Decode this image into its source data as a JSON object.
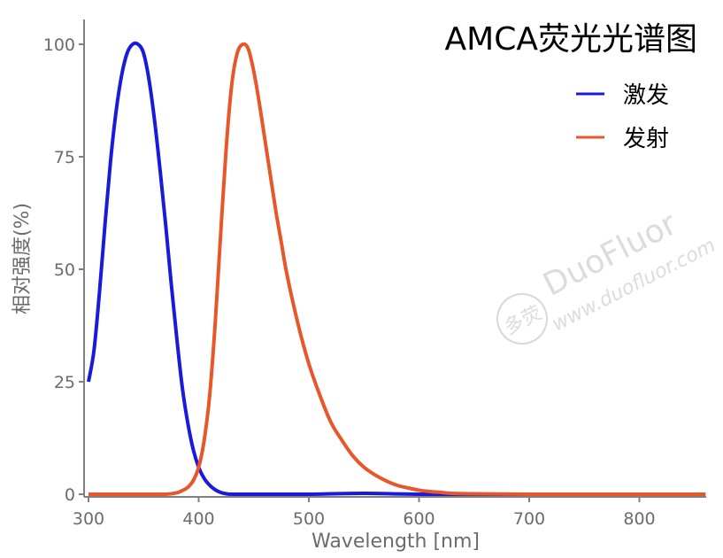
{
  "chart_data": {
    "type": "line",
    "title": "AMCA荧光光谱图",
    "xlabel": "Wavelength [nm]",
    "ylabel": "相对强度(%)",
    "xlim": [
      300,
      860
    ],
    "ylim": [
      0,
      100
    ],
    "xticks": [
      300,
      400,
      500,
      600,
      700,
      800
    ],
    "yticks": [
      0,
      25,
      50,
      75,
      100
    ],
    "grid": false,
    "legend_position": "top-right",
    "series": [
      {
        "name": "激发",
        "color": "#1a1adb",
        "x": [
          300,
          305,
          310,
          315,
          320,
          325,
          330,
          335,
          340,
          345,
          350,
          355,
          360,
          365,
          370,
          375,
          380,
          385,
          390,
          395,
          400,
          405,
          410,
          415,
          420,
          425,
          430,
          440,
          450,
          460,
          470,
          480,
          500,
          550,
          600,
          700,
          800,
          860
        ],
        "y": [
          25,
          32,
          45,
          60,
          74,
          85,
          93,
          98,
          100,
          100,
          98,
          92,
          83,
          72,
          60,
          47,
          35,
          24,
          16,
          10,
          6,
          3.5,
          2,
          1,
          0.4,
          0.1,
          0,
          0,
          0,
          0,
          0,
          0,
          0,
          0.2,
          0,
          0,
          0,
          0
        ]
      },
      {
        "name": "发射",
        "color": "#e8572a",
        "x": [
          300,
          350,
          370,
          380,
          385,
          390,
          395,
          400,
          405,
          410,
          415,
          420,
          425,
          430,
          435,
          440,
          445,
          450,
          455,
          460,
          465,
          470,
          475,
          480,
          490,
          500,
          510,
          520,
          530,
          540,
          550,
          560,
          570,
          580,
          590,
          600,
          610,
          620,
          630,
          650,
          700,
          800,
          860
        ],
        "y": [
          0,
          0,
          0,
          0.3,
          0.8,
          1.5,
          3,
          6,
          12,
          22,
          38,
          58,
          77,
          91,
          98,
          100,
          99,
          94,
          87,
          79,
          71,
          63,
          56,
          49,
          38,
          29,
          22,
          16,
          12,
          8.5,
          6,
          4.3,
          3,
          2,
          1.4,
          0.9,
          0.6,
          0.4,
          0.2,
          0.1,
          0,
          0,
          0
        ]
      }
    ]
  },
  "watermark": {
    "brand": "DuoFluor",
    "url": "www.duofluor.com",
    "logo_text": "多荧"
  }
}
